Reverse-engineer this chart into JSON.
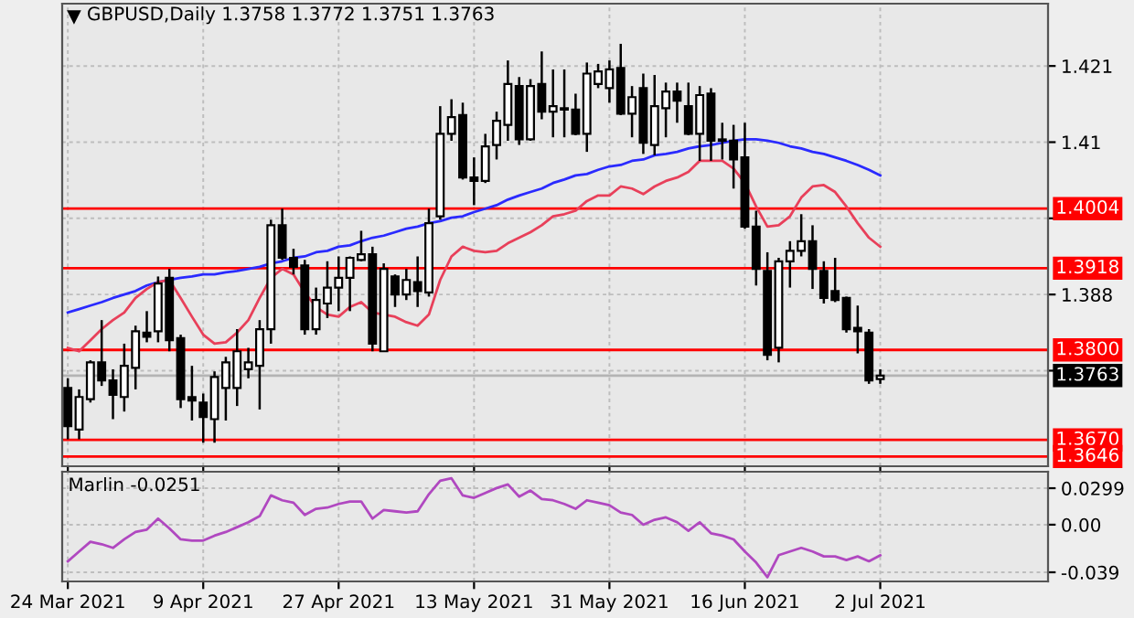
{
  "chart_data": [
    {
      "type": "candlestick",
      "title": "GBPUSD,Daily 1.3758 1.3772 1.3751 1.3763",
      "categories": [
        null,
        null,
        null,
        null,
        null,
        null,
        null,
        null,
        null,
        null,
        null,
        null,
        null,
        null,
        null,
        null,
        null,
        null,
        null,
        null,
        null,
        null,
        null,
        null,
        null,
        null,
        null,
        null,
        null,
        null,
        null,
        null,
        null,
        null,
        null,
        null,
        null,
        null,
        null,
        null,
        null,
        null,
        null,
        null,
        null,
        null,
        null,
        null,
        null,
        null,
        null,
        null,
        null,
        null,
        null,
        null,
        null,
        null,
        null,
        null,
        null,
        null,
        null,
        null,
        null,
        null,
        null,
        null,
        null,
        null,
        null,
        null,
        null
      ],
      "ohlc": [
        [
          1.3745,
          1.3759,
          1.3671,
          1.369
        ],
        [
          1.3685,
          1.3743,
          1.3671,
          1.3732
        ],
        [
          1.3729,
          1.3785,
          1.3724,
          1.3782
        ],
        [
          1.3782,
          1.3843,
          1.3748,
          1.3756
        ],
        [
          1.3756,
          1.3772,
          1.37,
          1.3735
        ],
        [
          1.3732,
          1.3809,
          1.3711,
          1.3777
        ],
        [
          1.3774,
          1.3835,
          1.3743,
          1.3827
        ],
        [
          1.3825,
          1.3856,
          1.3811,
          1.3819
        ],
        [
          1.3827,
          1.3906,
          1.3811,
          1.3896
        ],
        [
          1.3904,
          1.3917,
          1.3798,
          1.3814
        ],
        [
          1.3817,
          1.3822,
          1.3716,
          1.3729
        ],
        [
          1.3732,
          1.3777,
          1.3698,
          1.3727
        ],
        [
          1.3724,
          1.3737,
          1.3666,
          1.3703
        ],
        [
          1.37,
          1.3769,
          1.3666,
          1.3761
        ],
        [
          1.3745,
          1.379,
          1.3698,
          1.3782
        ],
        [
          1.3745,
          1.383,
          1.3719,
          1.3798
        ],
        [
          1.3772,
          1.3803,
          1.3759,
          1.3782
        ],
        [
          1.3777,
          1.3843,
          1.3714,
          1.383
        ],
        [
          1.383,
          1.3988,
          1.3809,
          1.398
        ],
        [
          1.398,
          1.4004,
          1.393,
          1.3933
        ],
        [
          1.3933,
          1.3946,
          1.3909,
          1.392
        ],
        [
          1.3922,
          1.393,
          1.3822,
          1.383
        ],
        [
          1.383,
          1.389,
          1.3822,
          1.3872
        ],
        [
          1.3867,
          1.3928,
          1.3846,
          1.389
        ],
        [
          1.389,
          1.3935,
          1.3856,
          1.3904
        ],
        [
          1.3904,
          1.3935,
          1.3856,
          1.3933
        ],
        [
          1.393,
          1.3972,
          1.3928,
          1.3938
        ],
        [
          1.3938,
          1.3949,
          1.3798,
          1.3809
        ],
        [
          1.3798,
          1.3925,
          1.3798,
          1.3917
        ],
        [
          1.3906,
          1.3909,
          1.3862,
          1.388
        ],
        [
          1.388,
          1.3917,
          1.3872,
          1.3901
        ],
        [
          1.3898,
          1.3935,
          1.3862,
          1.3885
        ],
        [
          1.3883,
          1.4004,
          1.3877,
          1.3983
        ],
        [
          1.3993,
          1.4152,
          1.3988,
          1.4112
        ],
        [
          1.4112,
          1.4162,
          1.4102,
          1.4136
        ],
        [
          1.4139,
          1.4157,
          1.4046,
          1.4049
        ],
        [
          1.4049,
          1.4078,
          1.4009,
          1.4044
        ],
        [
          1.4044,
          1.4112,
          1.4041,
          1.4094
        ],
        [
          1.4096,
          1.4144,
          1.4075,
          1.4131
        ],
        [
          1.4125,
          1.4218,
          1.4102,
          1.4184
        ],
        [
          1.4181,
          1.4194,
          1.4096,
          1.4104
        ],
        [
          1.4104,
          1.4191,
          1.4102,
          1.4181
        ],
        [
          1.4184,
          1.4231,
          1.4133,
          1.4144
        ],
        [
          1.4144,
          1.4205,
          1.4107,
          1.4152
        ],
        [
          1.4149,
          1.4205,
          1.4107,
          1.4147
        ],
        [
          1.4147,
          1.417,
          1.411,
          1.4112
        ],
        [
          1.4112,
          1.4215,
          1.4086,
          1.4199
        ],
        [
          1.4184,
          1.4213,
          1.4178,
          1.4202
        ],
        [
          1.4178,
          1.4218,
          1.4157,
          1.4205
        ],
        [
          1.4207,
          1.4242,
          1.4139,
          1.4141
        ],
        [
          1.4141,
          1.4181,
          1.4107,
          1.4165
        ],
        [
          1.4178,
          1.4199,
          1.4083,
          1.4099
        ],
        [
          1.4096,
          1.4197,
          1.4081,
          1.4152
        ],
        [
          1.4149,
          1.4186,
          1.4107,
          1.4173
        ],
        [
          1.4173,
          1.4186,
          1.4128,
          1.416
        ],
        [
          1.4152,
          1.4186,
          1.411,
          1.4112
        ],
        [
          1.4112,
          1.4181,
          1.4073,
          1.4168
        ],
        [
          1.417,
          1.4178,
          1.4073,
          1.4102
        ],
        [
          1.4104,
          1.4128,
          1.4075,
          1.4102
        ],
        [
          1.4102,
          1.4125,
          1.4033,
          1.4075
        ],
        [
          1.4078,
          1.4128,
          1.3975,
          1.3978
        ],
        [
          1.3978,
          1.4001,
          1.3893,
          1.3917
        ],
        [
          1.3914,
          1.3941,
          1.3785,
          1.3793
        ],
        [
          1.3803,
          1.3933,
          1.3782,
          1.3928
        ],
        [
          1.3928,
          1.3957,
          1.389,
          1.3943
        ],
        [
          1.3943,
          1.3996,
          1.3935,
          1.3957
        ],
        [
          1.3957,
          1.398,
          1.3888,
          1.3917
        ],
        [
          1.3914,
          1.3928,
          1.3867,
          1.3875
        ],
        [
          1.3885,
          1.3933,
          1.3869,
          1.3872
        ],
        [
          1.3875,
          1.3877,
          1.3825,
          1.383
        ],
        [
          1.3832,
          1.3864,
          1.3795,
          1.3827
        ],
        [
          1.3825,
          1.383,
          1.3751,
          1.3756
        ],
        [
          1.3758,
          1.3772,
          1.3751,
          1.3763
        ]
      ],
      "series": [
        {
          "type": "line",
          "color": "#2a2aff",
          "values": [
            1.3854,
            1.3859,
            1.3864,
            1.3869,
            1.3875,
            1.388,
            1.3885,
            1.3893,
            1.3898,
            1.3901,
            1.3904,
            1.3906,
            1.3909,
            1.3909,
            1.3912,
            1.3914,
            1.3917,
            1.392,
            1.3925,
            1.3928,
            1.3933,
            1.3935,
            1.3941,
            1.3943,
            1.3949,
            1.3951,
            1.3957,
            1.3962,
            1.3965,
            1.397,
            1.3975,
            1.3978,
            1.3983,
            1.3986,
            1.3991,
            1.3993,
            1.3999,
            1.4004,
            1.4009,
            1.4017,
            1.4023,
            1.4028,
            1.4033,
            1.4041,
            1.4046,
            1.4052,
            1.4054,
            1.406,
            1.4065,
            1.4067,
            1.4073,
            1.4075,
            1.4081,
            1.4083,
            1.4086,
            1.4091,
            1.4094,
            1.4096,
            1.4099,
            1.4102,
            1.4104,
            1.4104,
            1.4102,
            1.4099,
            1.4094,
            1.4091,
            1.4086,
            1.4083,
            1.4078,
            1.4073,
            1.4067,
            1.406,
            1.4052
          ]
        },
        {
          "type": "line",
          "color": "#e8405a",
          "values": [
            1.3803,
            1.3798,
            1.3814,
            1.383,
            1.3843,
            1.3854,
            1.3875,
            1.3888,
            1.3898,
            1.3901,
            1.3875,
            1.3848,
            1.3822,
            1.3809,
            1.3811,
            1.3825,
            1.3843,
            1.3875,
            1.3904,
            1.3917,
            1.3909,
            1.3883,
            1.3862,
            1.3851,
            1.3848,
            1.3862,
            1.3869,
            1.3854,
            1.3851,
            1.3848,
            1.384,
            1.3835,
            1.3851,
            1.3901,
            1.3935,
            1.3949,
            1.3943,
            1.3941,
            1.3943,
            1.3954,
            1.3962,
            1.397,
            1.398,
            1.3993,
            1.3996,
            1.4001,
            1.4015,
            1.4023,
            1.4023,
            1.4036,
            1.4033,
            1.4025,
            1.4036,
            1.4044,
            1.4049,
            1.4057,
            1.4073,
            1.4073,
            1.4073,
            1.4062,
            1.4041,
            1.4007,
            1.3978,
            1.398,
            1.3993,
            1.402,
            1.4036,
            1.4038,
            1.4028,
            1.4007,
            1.3983,
            1.3962,
            1.3949
          ]
        }
      ],
      "ylim": [
        1.3632,
        1.43
      ],
      "yticks": [
        1.421,
        1.41,
        {
          "value": 1.399,
          "label": null
        },
        1.388,
        {
          "value": 1.377,
          "label": null
        }
      ],
      "ref_lines": [
        {
          "axis": "y",
          "value": 1.4004,
          "label": "1.4004",
          "color": "#ff0000"
        },
        {
          "axis": "y",
          "value": 1.3918,
          "label": "1.3918",
          "color": "#ff0000"
        },
        {
          "axis": "y",
          "value": 1.38,
          "label": "1.3800",
          "color": "#ff0000"
        },
        {
          "axis": "y",
          "value": 1.3763,
          "label": "1.3763",
          "color": "#b4b4b4"
        },
        {
          "axis": "y",
          "value": 1.367,
          "label": "1.3670",
          "color": "#ff0000"
        },
        {
          "axis": "y",
          "value": 1.3646,
          "label": "1.3646",
          "color": "#ff0000"
        }
      ],
      "grid": true,
      "tick_labels": "y"
    },
    {
      "type": "line",
      "categories": [
        "24 Mar 2021",
        null,
        null,
        null,
        null,
        null,
        null,
        null,
        null,
        null,
        null,
        null,
        "9 Apr 2021",
        null,
        null,
        null,
        null,
        null,
        null,
        null,
        null,
        null,
        null,
        null,
        "27 Apr 2021",
        null,
        null,
        null,
        null,
        null,
        null,
        null,
        null,
        null,
        null,
        null,
        "13 May 2021",
        null,
        null,
        null,
        null,
        null,
        null,
        null,
        null,
        null,
        null,
        null,
        "31 May 2021",
        null,
        null,
        null,
        null,
        null,
        null,
        null,
        null,
        null,
        null,
        null,
        "16 Jun 2021",
        null,
        null,
        null,
        null,
        null,
        null,
        null,
        null,
        null,
        null,
        null,
        "2 Jul 2021"
      ],
      "series": [
        {
          "color": "#b048c0",
          "values": [
            -0.03,
            -0.022,
            -0.014,
            -0.016,
            -0.019,
            -0.012,
            -0.006,
            -0.004,
            0.005,
            -0.003,
            -0.012,
            -0.013,
            -0.013,
            -0.009,
            -0.006,
            -0.002,
            0.002,
            0.007,
            0.024,
            0.02,
            0.018,
            0.008,
            0.013,
            0.014,
            0.017,
            0.019,
            0.019,
            0.005,
            0.012,
            0.011,
            0.01,
            0.011,
            0.025,
            0.036,
            0.038,
            0.024,
            0.022,
            0.026,
            0.03,
            0.033,
            0.023,
            0.028,
            0.021,
            0.02,
            0.017,
            0.013,
            0.02,
            0.018,
            0.016,
            0.01,
            0.008,
            0.0,
            0.004,
            0.006,
            0.002,
            -0.005,
            0.002,
            -0.007,
            -0.009,
            -0.012,
            -0.022,
            -0.031,
            -0.043,
            -0.025,
            -0.022,
            -0.019,
            -0.022,
            -0.026,
            -0.026,
            -0.029,
            -0.026,
            -0.03,
            -0.0251
          ]
        }
      ],
      "ylim": [
        -0.0465,
        0.0434
      ],
      "yticks": [
        0.0299,
        {
          "value": 0,
          "label": "0.00"
        },
        {
          "value": -0.039,
          "label": "-0.039"
        }
      ],
      "annotations": [
        "Marlin -0.0251"
      ],
      "grid": true
    }
  ]
}
